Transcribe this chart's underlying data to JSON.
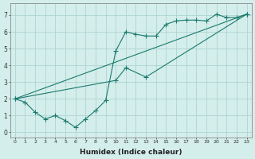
{
  "bg_color": "#d4eeeb",
  "grid_color": "#aed4d0",
  "line_color": "#1a7a6e",
  "marker": "+",
  "markersize": 4,
  "linewidth": 0.8,
  "xlabel": "Humidex (Indice chaleur)",
  "xlabel_fontsize": 6.5,
  "xlim": [
    -0.5,
    23.5
  ],
  "ylim": [
    -0.3,
    7.7
  ],
  "xtick_labels": [
    "0",
    "1",
    "2",
    "3",
    "4",
    "5",
    "6",
    "7",
    "8",
    "9",
    "10",
    "11",
    "12",
    "13",
    "14",
    "15",
    "16",
    "17",
    "18",
    "19",
    "20",
    "21",
    "22",
    "23"
  ],
  "ytick_labels": [
    "0",
    "1",
    "2",
    "3",
    "4",
    "5",
    "6",
    "7"
  ],
  "line1_x": [
    0,
    1,
    2,
    3,
    4,
    5,
    6,
    7,
    8,
    9,
    10,
    11,
    12,
    13,
    14,
    15,
    16,
    17,
    18,
    19,
    20,
    21,
    22,
    23
  ],
  "line1_y": [
    2.0,
    1.8,
    1.2,
    0.8,
    1.0,
    0.7,
    0.3,
    0.8,
    1.3,
    1.9,
    4.85,
    6.0,
    5.85,
    5.75,
    5.75,
    6.45,
    6.65,
    6.7,
    6.7,
    6.65,
    7.05,
    6.85,
    6.85,
    7.05
  ],
  "line2_x": [
    0,
    23
  ],
  "line2_y": [
    2.0,
    7.05
  ],
  "line3_x": [
    0,
    10,
    11,
    13,
    23
  ],
  "line3_y": [
    2.0,
    3.1,
    3.85,
    3.3,
    7.05
  ]
}
